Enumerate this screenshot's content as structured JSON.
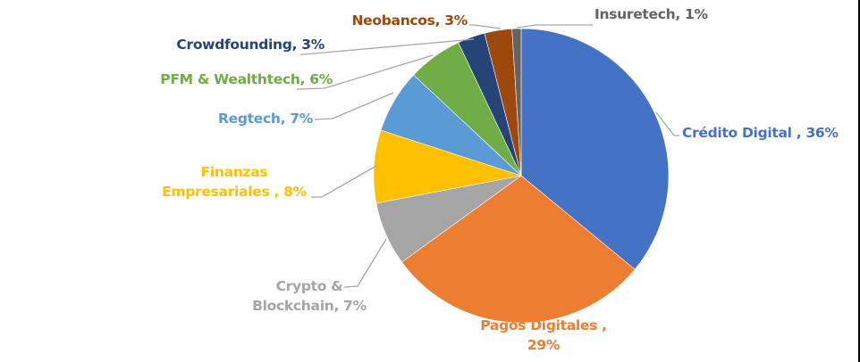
{
  "chart_data": {
    "type": "pie",
    "title": "",
    "start_angle_deg": 0,
    "direction": "clockwise",
    "slices": [
      {
        "label": "Crédito Digital",
        "value": 36,
        "display": "Crédito Digital , 36%",
        "color": "#4472C4",
        "text_color": "#4472C4"
      },
      {
        "label": "Pagos Digitales",
        "value": 29,
        "display_line1": "Pagos Digitales ,",
        "display_line2": "29%",
        "color": "#ED7D31",
        "text_color": "#ED7D31"
      },
      {
        "label": "Crypto & Blockchain",
        "value": 7,
        "display_line1": "Crypto &",
        "display_line2": "Blockchain, 7%",
        "color": "#A5A5A5",
        "text_color": "#A5A5A5"
      },
      {
        "label": "Finanzas Empresariales",
        "value": 8,
        "display_line1": "Finanzas",
        "display_line2": "Empresariales , 8%",
        "color": "#FFC000",
        "text_color": "#FFC000"
      },
      {
        "label": "Regtech",
        "value": 7,
        "display": "Regtech, 7%",
        "color": "#5B9BD5",
        "text_color": "#5B9BD5"
      },
      {
        "label": "PFM & Wealthtech",
        "value": 6,
        "display": "PFM & Wealthtech, 6%",
        "color": "#70AD47",
        "text_color": "#70AD47"
      },
      {
        "label": "Crowdfounding",
        "value": 3,
        "display": "Crowdfounding, 3%",
        "color": "#264478",
        "text_color": "#264478"
      },
      {
        "label": "Neobancos",
        "value": 3,
        "display": "Neobancos, 3%",
        "color": "#9E480E",
        "text_color": "#9E480E"
      },
      {
        "label": "Insuretech",
        "value": 1,
        "display": "Insuretech, 1%",
        "color": "#636363",
        "text_color": "#636363"
      }
    ],
    "leader_line_color": "#A6A6A6",
    "legend": "none (data labels with leader lines)"
  },
  "labels": {
    "credito": "Crédito Digital , 36%",
    "pagos_1": "Pagos Digitales ,",
    "pagos_2": "29%",
    "crypto_1": "Crypto &",
    "crypto_2": "Blockchain, 7%",
    "finanzas_1": "Finanzas",
    "finanzas_2": "Empresariales , 8%",
    "regtech": "Regtech, 7%",
    "pfm": "PFM & Wealthtech, 6%",
    "crowd": "Crowdfounding, 3%",
    "neo": "Neobancos, 3%",
    "insure": "Insuretech, 1%"
  }
}
